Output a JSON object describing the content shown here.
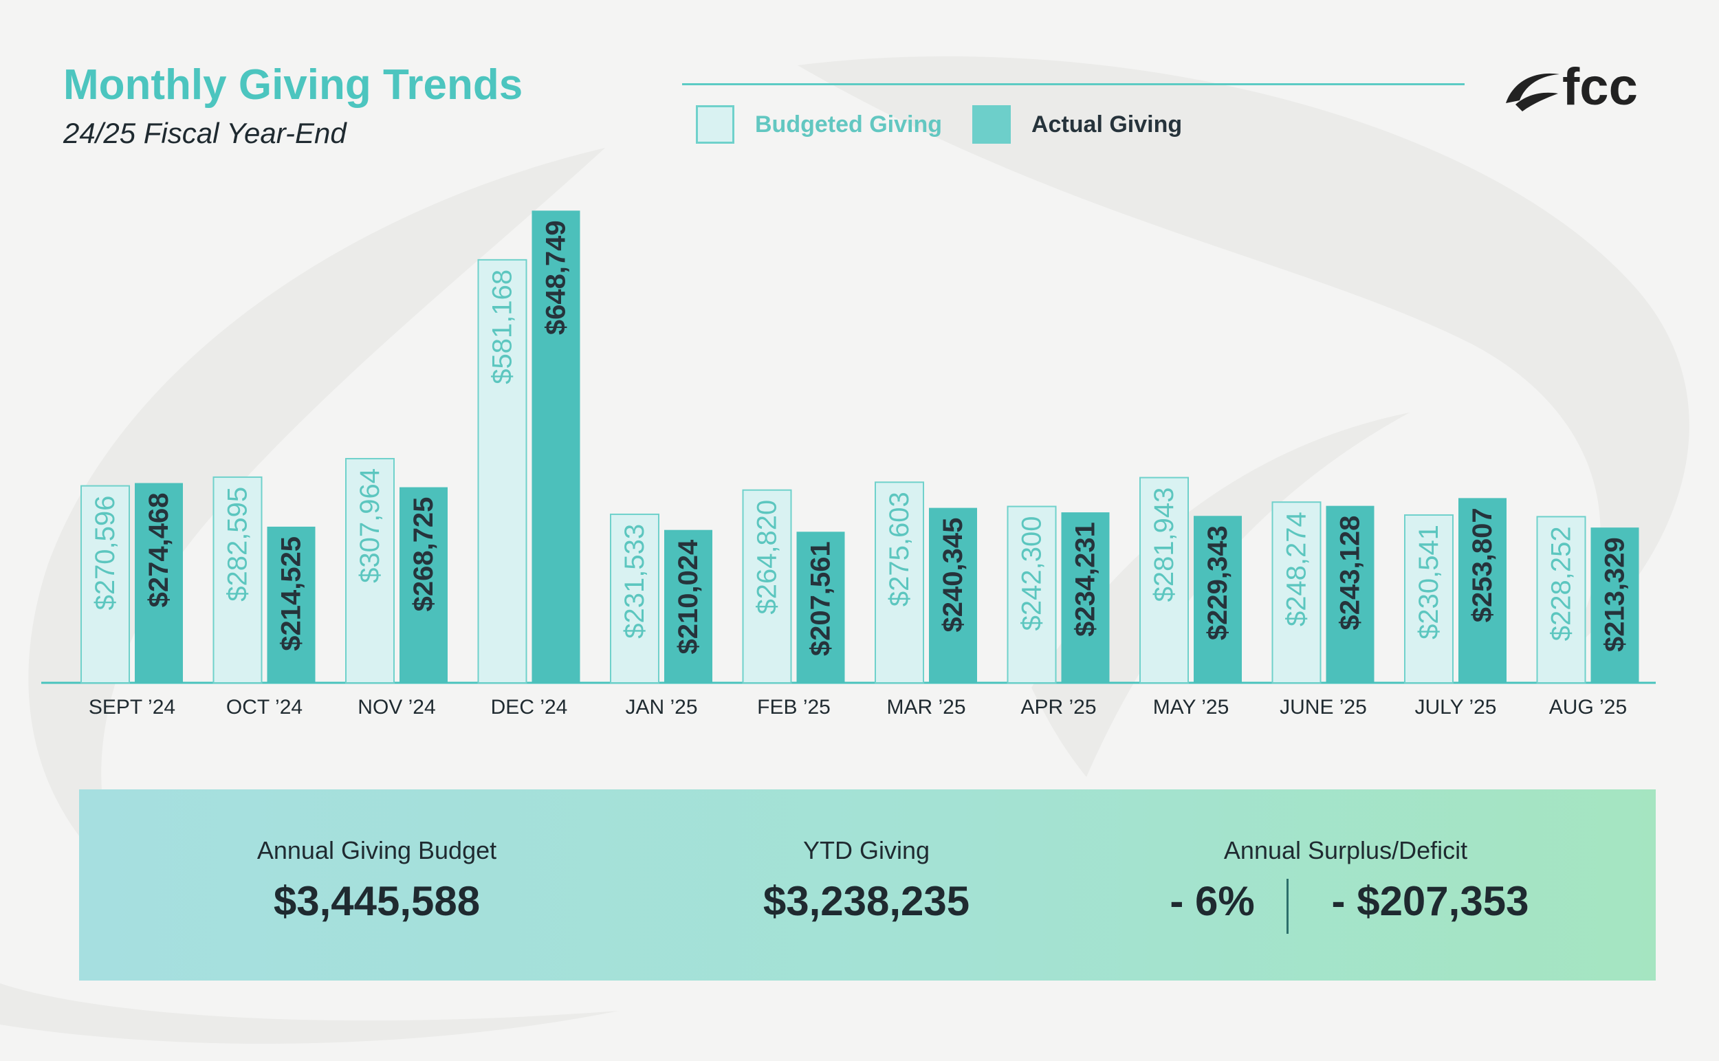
{
  "header": {
    "title": "Monthly Giving Trends",
    "subtitle": "24/25 Fiscal Year-End",
    "logo_text": "fcc"
  },
  "legend": {
    "budgeted_label": "Budgeted Giving",
    "actual_label": "Actual Giving"
  },
  "colors": {
    "accent": "#4cc5bf",
    "budget_fill": "#d9f2f2",
    "budget_stroke": "#6fd1cb",
    "budget_text": "#5cc6bf",
    "actual_fill": "#4cc0bb",
    "actual_text": "#26333b"
  },
  "chart_data": {
    "type": "bar",
    "title": "Monthly Giving Trends",
    "subtitle": "24/25 Fiscal Year-End",
    "categories": [
      "SEPT ’24",
      "OCT ’24",
      "NOV ’24",
      "DEC ’24",
      "JAN ’25",
      "FEB ’25",
      "MAR ’25",
      "APR ’25",
      "MAY ’25",
      "JUNE ’25",
      "JULY ’25",
      "AUG ’25"
    ],
    "series": [
      {
        "name": "Budgeted Giving",
        "values": [
          270596,
          282595,
          307964,
          581168,
          231533,
          264820,
          275603,
          242300,
          281943,
          248274,
          230541,
          228252
        ],
        "labels": [
          "$270,596",
          "$282,595",
          "$307,964",
          "$581,168",
          "$231,533",
          "$264,820",
          "$275,603",
          "$242,300",
          "$281,943",
          "$248,274",
          "$230,541",
          "$228,252"
        ]
      },
      {
        "name": "Actual Giving",
        "values": [
          274468,
          214525,
          268725,
          648749,
          210024,
          207561,
          240345,
          234231,
          229343,
          243128,
          253807,
          213329
        ],
        "labels": [
          "$274,468",
          "$214,525",
          "$268,725",
          "$648,749",
          "$210,024",
          "$207,561",
          "$240,345",
          "$234,231",
          "$229,343",
          "$243,128",
          "$253,807",
          "$213,329"
        ]
      }
    ],
    "xlabel": "",
    "ylabel": "",
    "ylim": [
      0,
      650000
    ],
    "grid": false,
    "legend_position": "top"
  },
  "summary": {
    "budget_label": "Annual Giving Budget",
    "budget_value": "$3,445,588",
    "ytd_label": "YTD Giving",
    "ytd_value": "$3,238,235",
    "surplus_label": "Annual Surplus/Deficit",
    "surplus_percent": "- 6%",
    "surplus_amount": "- $207,353"
  }
}
